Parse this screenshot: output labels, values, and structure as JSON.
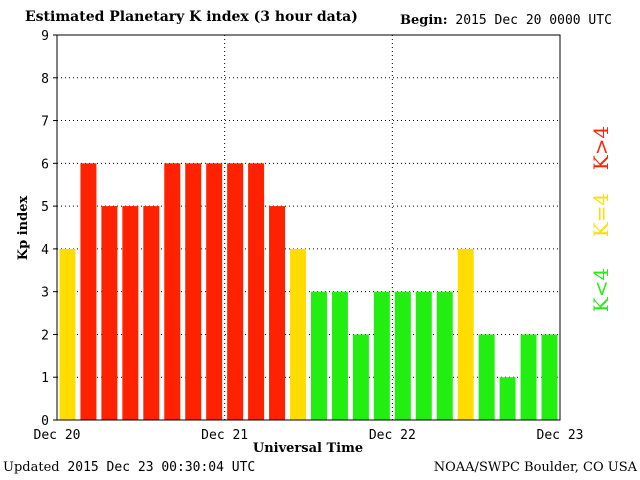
{
  "header": {
    "title": "Estimated Planetary K index (3 hour data)",
    "begin_label": "Begin:",
    "begin_value": "2015 Dec 20 0000 UTC"
  },
  "footer": {
    "updated_label": "Updated",
    "updated_value": "2015 Dec 23 00:30:04 UTC",
    "source": "NOAA/SWPC Boulder, CO USA"
  },
  "colors": {
    "below": "#22ee11",
    "equal": "#ffdd00",
    "above": "#ff2200",
    "grid": "#000000"
  },
  "chart_data": {
    "type": "bar",
    "title": "Estimated Planetary K index (3 hour data)",
    "xlabel": "Universal Time",
    "ylabel": "Kp index",
    "ylim": [
      0,
      9
    ],
    "yticks": [
      "0",
      "1",
      "2",
      "3",
      "4",
      "5",
      "6",
      "7",
      "8",
      "9"
    ],
    "xtick_labels": [
      "Dec 20",
      "Dec 21",
      "Dec 22",
      "Dec 23"
    ],
    "interval_hours": 3,
    "values": [
      4,
      6,
      5,
      5,
      5,
      6,
      6,
      6,
      6,
      6,
      5,
      4,
      3,
      3,
      2,
      3,
      3,
      3,
      3,
      4,
      2,
      1,
      2,
      2
    ],
    "legend": [
      {
        "label": "K<4",
        "color": "#22ee11"
      },
      {
        "label": "K=4",
        "color": "#ffdd00"
      },
      {
        "label": "K>4",
        "color": "#ff2200"
      }
    ],
    "grid": true
  }
}
